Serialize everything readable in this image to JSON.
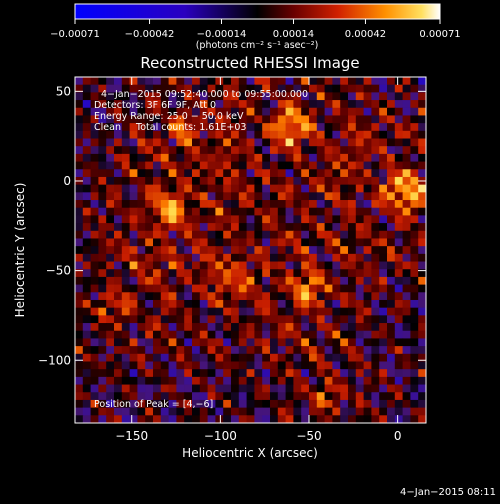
{
  "chart_data": {
    "type": "heatmap",
    "title": "Reconstructed RHESSI Image",
    "xlabel": "Heliocentric X (arcsec)",
    "ylabel": "Heliocentric Y (arcsec)",
    "xlim": [
      -182,
      16
    ],
    "ylim": [
      -135,
      58
    ],
    "x_ticks": [
      -150,
      -100,
      -50,
      0
    ],
    "x_tick_labels": [
      "−150",
      "−100",
      "−50",
      "0"
    ],
    "y_ticks": [
      50,
      0,
      -50,
      -100
    ],
    "y_tick_labels": [
      "50",
      "0",
      "−50",
      "−100"
    ],
    "colorbar": {
      "vmin": -0.00071,
      "vmax": 0.00071,
      "tick_values": [
        -0.00071,
        -0.00042,
        -0.00014,
        0.00014,
        0.00042,
        0.00071
      ],
      "tick_labels": [
        "−0.00071",
        "−0.00042",
        "−0.00014",
        "0.00014",
        "0.00042",
        "0.00071"
      ],
      "units": "(photons cm⁻² s⁻¹ asec⁻²)"
    },
    "annotations": [
      "4−Jan−2015 09:52:40.000 to 09:55:00.000",
      "Detectors: 3F 6F 9F, Att 0",
      "Energy Range: 25.0 − 50.0 keV",
      "Clean     Total counts: 1.61E+03"
    ],
    "peak_label": "Position of Peak = [4,−6]",
    "peak": [
      4,
      -6
    ],
    "footer": "4−Jan−2015 08:11"
  }
}
